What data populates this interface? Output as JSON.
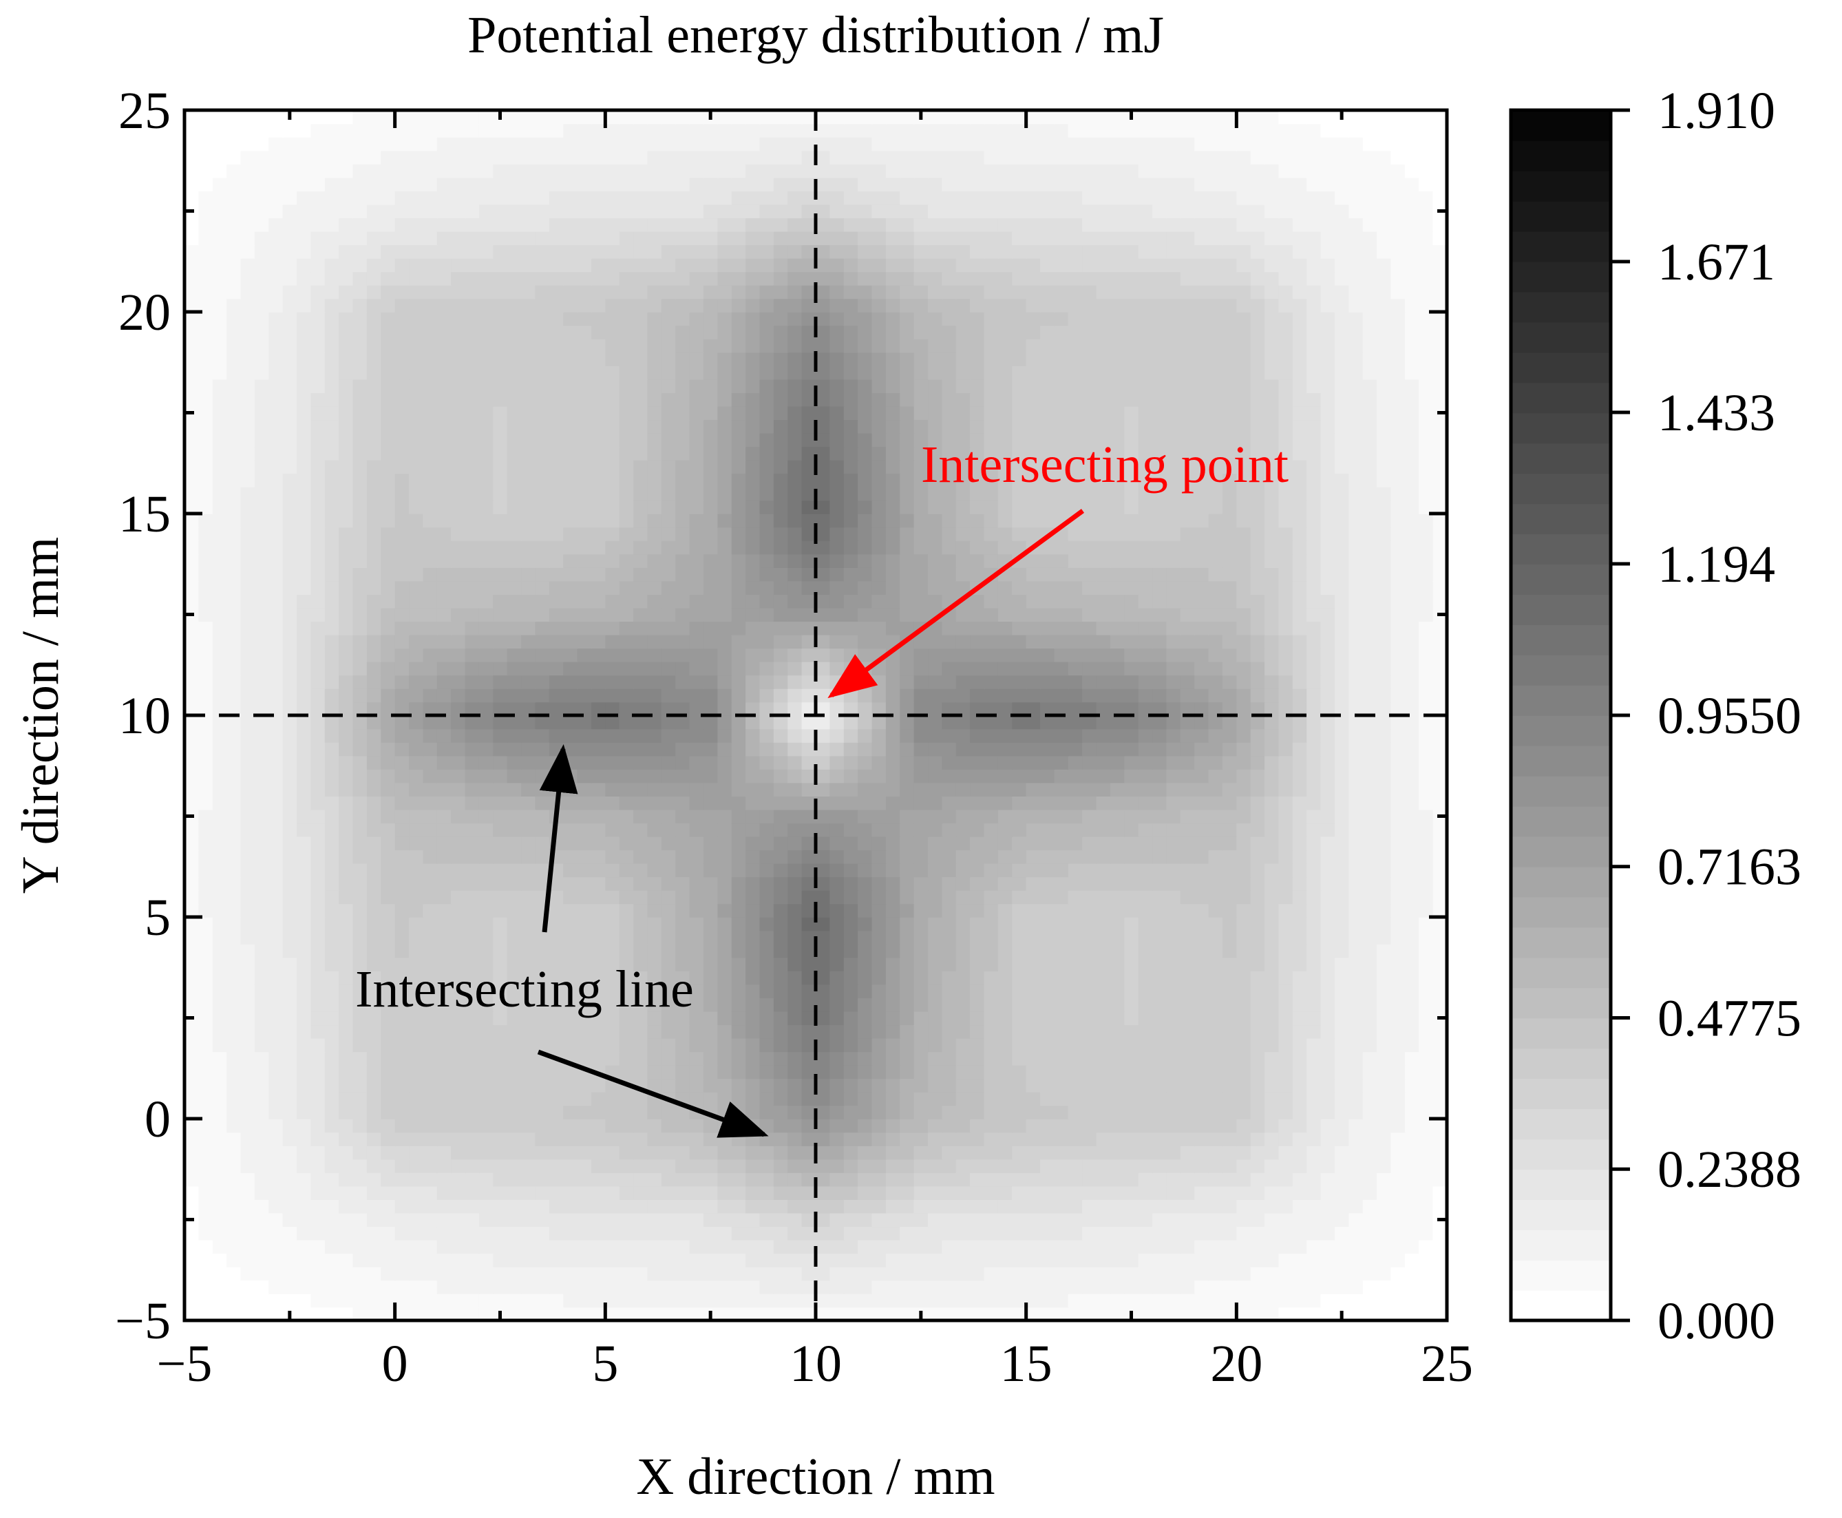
{
  "chart_data": {
    "type": "heatmap",
    "title": "Potential energy distribution / mJ",
    "xlabel": "X direction / mm",
    "ylabel": "Y direction / mm",
    "xlim": [
      -5,
      25
    ],
    "ylim": [
      -5,
      25
    ],
    "x_ticks": [
      "−5",
      "0",
      "5",
      "10",
      "15",
      "20",
      "25"
    ],
    "y_ticks": [
      "−5",
      "0",
      "5",
      "10",
      "15",
      "20",
      "25"
    ],
    "x_tick_values": [
      -5,
      0,
      5,
      10,
      15,
      20,
      25
    ],
    "y_tick_values": [
      -5,
      0,
      5,
      10,
      15,
      20,
      25
    ],
    "colorbar": {
      "range": [
        0,
        1.91
      ],
      "tick_labels": [
        "0.000",
        "0.2388",
        "0.4775",
        "0.7163",
        "0.9550",
        "1.194",
        "1.433",
        "1.671",
        "1.910"
      ],
      "tick_values": [
        0,
        0.2388,
        0.4775,
        0.7163,
        0.955,
        1.194,
        1.433,
        1.671,
        1.91
      ],
      "colormap": [
        "#ffffff",
        "#000000"
      ],
      "levels": 40
    },
    "grid_x": [
      -5,
      -2.5,
      0,
      2.5,
      5,
      7.5,
      10,
      12.5,
      15,
      17.5,
      20,
      22.5,
      25
    ],
    "grid_y": [
      -5,
      -2.5,
      0,
      2.5,
      5,
      7.5,
      10,
      12.5,
      15,
      17.5,
      20,
      22.5,
      25
    ],
    "z": [
      [
        0.02,
        0.03,
        0.05,
        0.06,
        0.07,
        0.07,
        0.07,
        0.07,
        0.07,
        0.06,
        0.05,
        0.03,
        0.02
      ],
      [
        0.04,
        0.1,
        0.16,
        0.2,
        0.22,
        0.24,
        0.35,
        0.24,
        0.22,
        0.2,
        0.16,
        0.1,
        0.04
      ],
      [
        0.05,
        0.16,
        0.4,
        0.42,
        0.44,
        0.55,
        0.85,
        0.55,
        0.44,
        0.42,
        0.4,
        0.16,
        0.05
      ],
      [
        0.06,
        0.18,
        0.42,
        0.38,
        0.4,
        0.62,
        1.05,
        0.62,
        0.4,
        0.38,
        0.42,
        0.18,
        0.06
      ],
      [
        0.07,
        0.2,
        0.44,
        0.38,
        0.4,
        0.65,
        1.15,
        0.65,
        0.4,
        0.38,
        0.44,
        0.2,
        0.07
      ],
      [
        0.07,
        0.2,
        0.5,
        0.55,
        0.6,
        0.7,
        0.8,
        0.7,
        0.6,
        0.55,
        0.5,
        0.2,
        0.07
      ],
      [
        0.06,
        0.2,
        0.7,
        0.95,
        1.05,
        0.9,
        0.05,
        0.9,
        1.05,
        0.95,
        0.7,
        0.2,
        0.06
      ],
      [
        0.07,
        0.2,
        0.5,
        0.55,
        0.6,
        0.7,
        0.8,
        0.7,
        0.6,
        0.55,
        0.5,
        0.2,
        0.07
      ],
      [
        0.07,
        0.2,
        0.44,
        0.38,
        0.4,
        0.65,
        1.15,
        0.65,
        0.4,
        0.38,
        0.44,
        0.2,
        0.07
      ],
      [
        0.06,
        0.18,
        0.42,
        0.38,
        0.4,
        0.62,
        1.05,
        0.62,
        0.4,
        0.38,
        0.42,
        0.18,
        0.06
      ],
      [
        0.05,
        0.16,
        0.4,
        0.42,
        0.44,
        0.55,
        0.85,
        0.55,
        0.44,
        0.42,
        0.4,
        0.16,
        0.05
      ],
      [
        0.04,
        0.1,
        0.16,
        0.2,
        0.22,
        0.24,
        0.35,
        0.24,
        0.22,
        0.2,
        0.16,
        0.1,
        0.04
      ],
      [
        0.02,
        0.03,
        0.05,
        0.06,
        0.07,
        0.07,
        0.07,
        0.07,
        0.07,
        0.06,
        0.05,
        0.03,
        0.02
      ]
    ],
    "reference_lines": [
      {
        "orientation": "horizontal",
        "value": 10,
        "style": "dashed"
      },
      {
        "orientation": "vertical",
        "value": 10,
        "style": "dashed"
      }
    ],
    "annotations": [
      {
        "text": "Intersecting point",
        "color": "#ff0000",
        "arrow_to": [
          10.2,
          10.4
        ],
        "arrow_from": [
          16.4,
          15.0
        ]
      },
      {
        "text": "Intersecting line",
        "color": "#000000",
        "arrows": [
          {
            "from": [
              3.6,
              4.6
            ],
            "to": [
              4.0,
              9.4
            ]
          },
          {
            "from": [
              3.5,
              1.6
            ],
            "to": [
              9.0,
              -0.4
            ]
          }
        ]
      }
    ],
    "grid": false,
    "legend": "colorbar-right"
  }
}
